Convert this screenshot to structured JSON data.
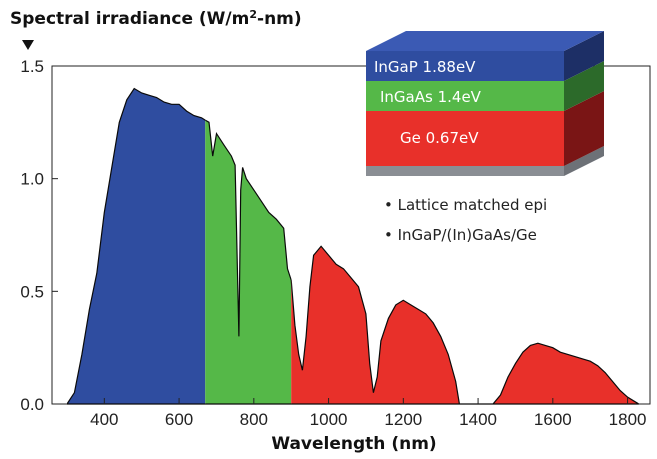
{
  "chart_data": {
    "type": "area",
    "title": "Spectral irradiance (W/m²-nm)",
    "title_main": "Spectral irradiance (W/m",
    "title_sup": "2",
    "title_end": "-nm)",
    "xlabel": "Wavelength (nm)",
    "xlim": [
      260,
      1860
    ],
    "ylim": [
      0,
      1.5
    ],
    "xticks": [
      "400",
      "600",
      "800",
      "1000",
      "1200",
      "1400",
      "1600",
      "1800"
    ],
    "xtick_values": [
      400,
      600,
      800,
      1000,
      1200,
      1400,
      1600,
      1800
    ],
    "yticks": [
      "0.0",
      "0.5",
      "1.0",
      "1.5"
    ],
    "ytick_values": [
      0,
      0.5,
      1.0,
      1.5
    ],
    "grid": false,
    "bands": [
      {
        "name": "InGaP",
        "x_range": [
          300,
          670
        ],
        "color": "#2f4da0"
      },
      {
        "name": "InGaAs",
        "x_range": [
          670,
          900
        ],
        "color": "#55b848"
      },
      {
        "name": "Ge",
        "x_range": [
          900,
          1830
        ],
        "color": "#e8302a"
      }
    ],
    "spectrum": {
      "x": [
        300,
        320,
        340,
        360,
        380,
        400,
        420,
        440,
        460,
        480,
        500,
        520,
        540,
        560,
        580,
        600,
        620,
        640,
        660,
        670,
        680,
        690,
        700,
        720,
        740,
        750,
        760,
        765,
        770,
        780,
        800,
        820,
        840,
        860,
        880,
        890,
        900,
        910,
        920,
        930,
        940,
        950,
        960,
        980,
        1000,
        1020,
        1040,
        1060,
        1080,
        1100,
        1110,
        1120,
        1130,
        1140,
        1160,
        1180,
        1200,
        1220,
        1240,
        1260,
        1280,
        1300,
        1320,
        1340,
        1350,
        1360,
        1380,
        1400,
        1420,
        1440,
        1460,
        1480,
        1500,
        1520,
        1540,
        1560,
        1580,
        1600,
        1620,
        1640,
        1660,
        1680,
        1700,
        1720,
        1740,
        1760,
        1780,
        1800,
        1820,
        1830
      ],
      "y": [
        0.0,
        0.05,
        0.22,
        0.42,
        0.58,
        0.85,
        1.05,
        1.25,
        1.35,
        1.4,
        1.38,
        1.37,
        1.36,
        1.34,
        1.33,
        1.33,
        1.3,
        1.28,
        1.27,
        1.26,
        1.25,
        1.1,
        1.2,
        1.15,
        1.1,
        1.06,
        0.3,
        0.95,
        1.05,
        1.0,
        0.95,
        0.9,
        0.85,
        0.82,
        0.78,
        0.6,
        0.55,
        0.35,
        0.22,
        0.15,
        0.3,
        0.52,
        0.66,
        0.7,
        0.66,
        0.62,
        0.6,
        0.56,
        0.52,
        0.4,
        0.18,
        0.05,
        0.12,
        0.28,
        0.38,
        0.44,
        0.46,
        0.44,
        0.42,
        0.4,
        0.36,
        0.3,
        0.22,
        0.1,
        0.0,
        0.0,
        0.0,
        0.0,
        0.0,
        0.0,
        0.04,
        0.12,
        0.18,
        0.23,
        0.26,
        0.27,
        0.26,
        0.25,
        0.23,
        0.22,
        0.21,
        0.2,
        0.19,
        0.17,
        0.14,
        0.1,
        0.06,
        0.03,
        0.01,
        0.0
      ]
    },
    "inset": {
      "layers": [
        {
          "label": "InGaP 1.88eV",
          "color": "#2f4da0"
        },
        {
          "label": "InGaAs 1.4eV",
          "color": "#55b848"
        },
        {
          "label": "Ge 0.67eV",
          "color": "#e8302a"
        }
      ],
      "notes": [
        "• Lattice matched epi",
        "• InGaP/(In)GaAs/Ge"
      ]
    }
  }
}
